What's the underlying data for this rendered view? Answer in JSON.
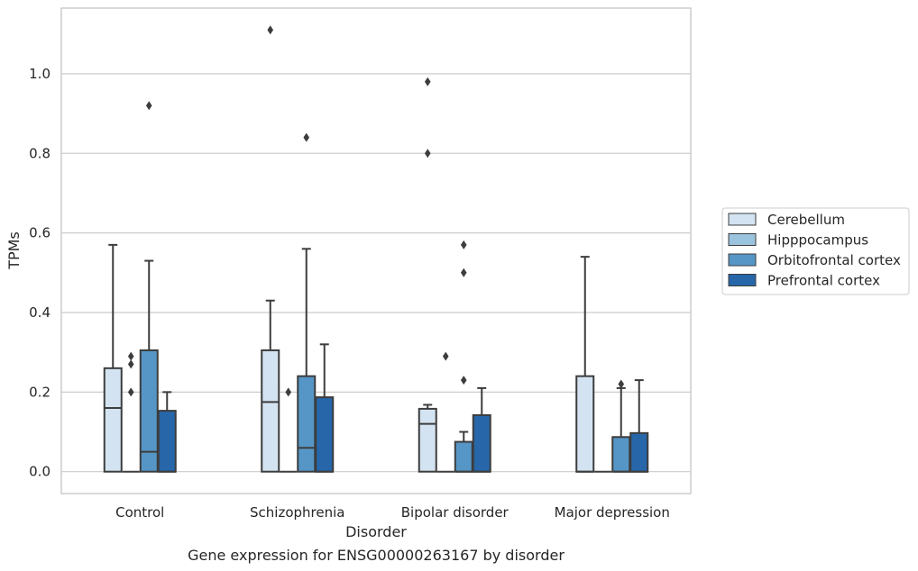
{
  "chart_data": {
    "type": "box",
    "title": "Gene expression for ENSG00000263167 by disorder",
    "xlabel": "Disorder",
    "ylabel": "TPMs",
    "ylim": [
      -0.055,
      1.165
    ],
    "yticks": [
      0.0,
      0.2,
      0.4,
      0.6,
      0.8,
      1.0
    ],
    "ytick_labels": [
      "0.0",
      "0.2",
      "0.4",
      "0.6",
      "0.8",
      "1.0"
    ],
    "grid": "horizontal",
    "legend_position": "right",
    "categories": [
      "Control",
      "Schizophrenia",
      "Bipolar disorder",
      "Major depression"
    ],
    "series": [
      {
        "name": "Cerebellum",
        "color": "#d3e3f1",
        "boxes": [
          {
            "q1": 0.0,
            "median": 0.16,
            "q3": 0.26,
            "whisker_low": 0.0,
            "whisker_high": 0.57,
            "outliers": []
          },
          {
            "q1": 0.0,
            "median": 0.175,
            "q3": 0.305,
            "whisker_low": 0.0,
            "whisker_high": 0.43,
            "outliers": [
              1.11
            ]
          },
          {
            "q1": 0.0,
            "median": 0.12,
            "q3": 0.158,
            "whisker_low": 0.0,
            "whisker_high": 0.168,
            "outliers": [
              0.98,
              0.8
            ]
          },
          {
            "q1": 0.0,
            "median": 0.0,
            "q3": 0.24,
            "whisker_low": 0.0,
            "whisker_high": 0.54,
            "outliers": []
          }
        ]
      },
      {
        "name": "Hipppocampus",
        "color": "#9ac3dd",
        "boxes": [
          {
            "q1": 0.0,
            "median": 0.0,
            "q3": 0.0,
            "whisker_low": 0.0,
            "whisker_high": 0.0,
            "outliers": [
              0.29,
              0.27,
              0.2
            ]
          },
          {
            "q1": 0.0,
            "median": 0.0,
            "q3": 0.0,
            "whisker_low": 0.0,
            "whisker_high": 0.0,
            "outliers": [
              0.2
            ]
          },
          {
            "q1": 0.0,
            "median": 0.0,
            "q3": 0.0,
            "whisker_low": 0.0,
            "whisker_high": 0.0,
            "outliers": [
              0.29
            ]
          },
          {
            "q1": 0.0,
            "median": 0.0,
            "q3": 0.0,
            "whisker_low": 0.0,
            "whisker_high": 0.0,
            "outliers": []
          }
        ]
      },
      {
        "name": "Orbitofrontal cortex",
        "color": "#5596c6",
        "boxes": [
          {
            "q1": 0.0,
            "median": 0.05,
            "q3": 0.305,
            "whisker_low": 0.0,
            "whisker_high": 0.53,
            "outliers": [
              0.92
            ]
          },
          {
            "q1": 0.0,
            "median": 0.06,
            "q3": 0.24,
            "whisker_low": 0.0,
            "whisker_high": 0.56,
            "outliers": [
              0.84
            ]
          },
          {
            "q1": 0.0,
            "median": 0.0,
            "q3": 0.075,
            "whisker_low": 0.0,
            "whisker_high": 0.1,
            "outliers": [
              0.57,
              0.5,
              0.23
            ]
          },
          {
            "q1": 0.0,
            "median": 0.0,
            "q3": 0.087,
            "whisker_low": 0.0,
            "whisker_high": 0.21,
            "outliers": [
              0.22
            ]
          }
        ]
      },
      {
        "name": "Prefrontal cortex",
        "color": "#2666a9",
        "boxes": [
          {
            "q1": 0.0,
            "median": 0.0,
            "q3": 0.153,
            "whisker_low": 0.0,
            "whisker_high": 0.2,
            "outliers": []
          },
          {
            "q1": 0.0,
            "median": 0.0,
            "q3": 0.187,
            "whisker_low": 0.0,
            "whisker_high": 0.32,
            "outliers": []
          },
          {
            "q1": 0.0,
            "median": 0.0,
            "q3": 0.142,
            "whisker_low": 0.0,
            "whisker_high": 0.21,
            "outliers": []
          },
          {
            "q1": 0.0,
            "median": 0.0,
            "q3": 0.097,
            "whisker_low": 0.0,
            "whisker_high": 0.23,
            "outliers": []
          }
        ]
      }
    ]
  }
}
